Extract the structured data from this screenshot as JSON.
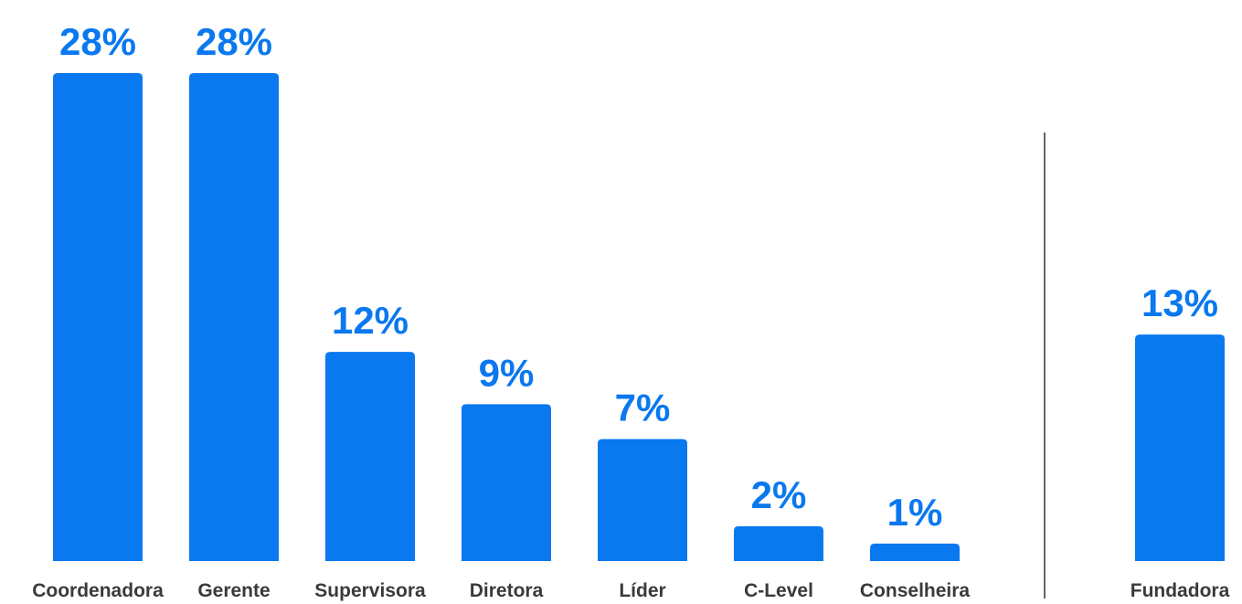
{
  "chart_data": {
    "type": "bar",
    "categories": [
      "Coordenadora",
      "Gerente",
      "Supervisora",
      "Diretora",
      "Líder",
      "C-Level",
      "Conselheira",
      "Fundadora"
    ],
    "values": [
      28,
      28,
      12,
      9,
      7,
      2,
      1,
      13
    ],
    "value_labels": [
      "28%",
      "28%",
      "12%",
      "9%",
      "7%",
      "2%",
      "1%",
      "13%"
    ],
    "color": "#0a78ef"
  }
}
